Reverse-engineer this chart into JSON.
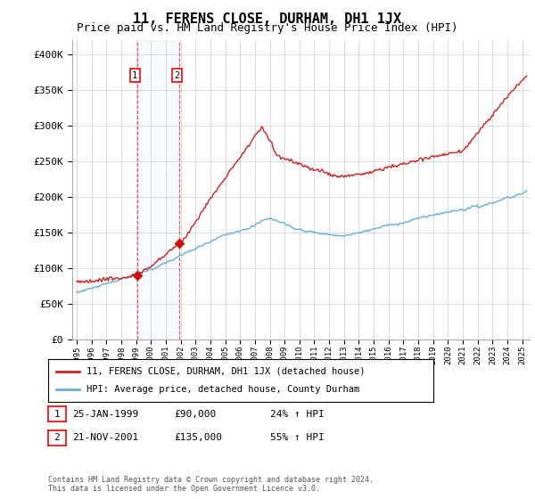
{
  "title": "11, FERENS CLOSE, DURHAM, DH1 1JX",
  "subtitle": "Price paid vs. HM Land Registry's House Price Index (HPI)",
  "ylim": [
    0,
    420000
  ],
  "yticks": [
    0,
    50000,
    100000,
    150000,
    200000,
    250000,
    300000,
    350000,
    400000
  ],
  "ytick_labels": [
    "£0",
    "£50K",
    "£100K",
    "£150K",
    "£200K",
    "£250K",
    "£300K",
    "£350K",
    "£400K"
  ],
  "sale1_date": 1999.07,
  "sale1_price": 90000,
  "sale2_date": 2001.9,
  "sale2_price": 135000,
  "hpi_color": "#6baed6",
  "price_color": "#cc2222",
  "sale_marker_color": "#cc1111",
  "background_color": "#ffffff",
  "grid_color": "#cccccc",
  "legend_label_price": "11, FERENS CLOSE, DURHAM, DH1 1JX (detached house)",
  "legend_label_hpi": "HPI: Average price, detached house, County Durham",
  "annotation1_label": "1",
  "annotation1_date": "25-JAN-1999",
  "annotation1_price": "£90,000",
  "annotation1_hpi": "24% ↑ HPI",
  "annotation2_label": "2",
  "annotation2_date": "21-NOV-2001",
  "annotation2_price": "£135,000",
  "annotation2_hpi": "55% ↑ HPI",
  "footer": "Contains HM Land Registry data © Crown copyright and database right 2024.\nThis data is licensed under the Open Government Licence v3.0.",
  "xstart": 1994.7,
  "xend": 2025.5,
  "title_fontsize": 11,
  "subtitle_fontsize": 9
}
